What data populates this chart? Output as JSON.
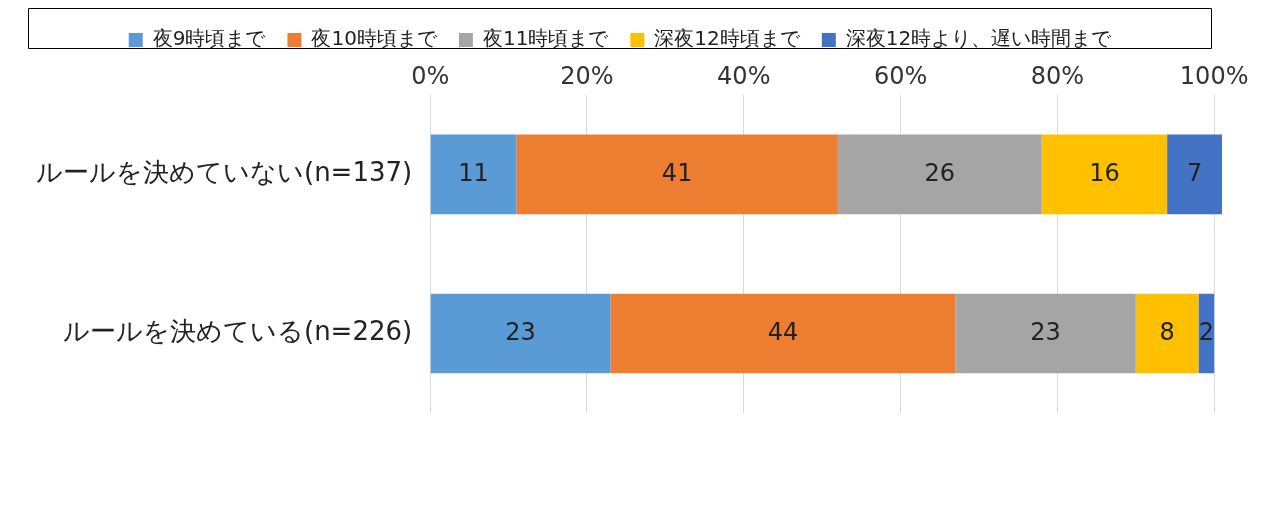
{
  "chart_data": {
    "type": "bar",
    "orientation": "horizontal",
    "stacked": true,
    "categories": [
      "ルールを決めていない(n=137)",
      "ルールを決めている(n=226)"
    ],
    "series": [
      {
        "name": "夜9時頃まで",
        "color": "#5b9bd5",
        "values": [
          11,
          23
        ]
      },
      {
        "name": "夜10時頃まで",
        "color": "#ed7d31",
        "values": [
          41,
          44
        ]
      },
      {
        "name": "夜11時頃まで",
        "color": "#a5a5a5",
        "values": [
          26,
          23
        ]
      },
      {
        "name": "深夜12時頃まで",
        "color": "#ffc000",
        "values": [
          16,
          8
        ]
      },
      {
        "name": "深夜12時より、遅い時間まで",
        "color": "#4472c4",
        "values": [
          7,
          2
        ]
      }
    ],
    "xlim": [
      0,
      101
    ],
    "xticks": [
      {
        "value": 0,
        "label": "0%"
      },
      {
        "value": 20,
        "label": "20%"
      },
      {
        "value": 40,
        "label": "40%"
      },
      {
        "value": 60,
        "label": "60%"
      },
      {
        "value": 80,
        "label": "80%"
      },
      {
        "value": 100,
        "label": "100%"
      }
    ],
    "grid": "x",
    "legend": "top",
    "data_labels": true
  }
}
